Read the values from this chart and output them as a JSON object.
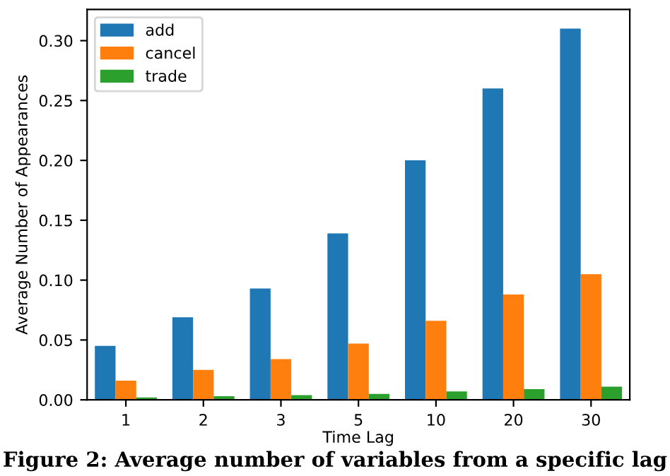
{
  "chart_data": {
    "type": "bar",
    "xlabel": "Time Lag",
    "ylabel": "Average Number of Appearances",
    "categories": [
      "1",
      "2",
      "3",
      "5",
      "10",
      "20",
      "30"
    ],
    "series": [
      {
        "name": "add",
        "color": "#1f77b4",
        "values": [
          0.045,
          0.069,
          0.093,
          0.139,
          0.2,
          0.26,
          0.31
        ]
      },
      {
        "name": "cancel",
        "color": "#ff7f0e",
        "values": [
          0.016,
          0.025,
          0.034,
          0.047,
          0.066,
          0.088,
          0.105
        ]
      },
      {
        "name": "trade",
        "color": "#2ca02c",
        "values": [
          0.002,
          0.003,
          0.004,
          0.005,
          0.007,
          0.009,
          0.011
        ]
      }
    ],
    "ylim": [
      0,
      0.326
    ],
    "yticks": [
      {
        "value": 0,
        "label": "0.00"
      },
      {
        "value": 0.05,
        "label": "0.05"
      },
      {
        "value": 0.1,
        "label": "0.10"
      },
      {
        "value": 0.15,
        "label": "0.15"
      },
      {
        "value": 0.2,
        "label": "0.20"
      },
      {
        "value": 0.25,
        "label": "0.25"
      },
      {
        "value": 0.3,
        "label": "0.30"
      }
    ],
    "legend": "top left",
    "grid": false,
    "annotations": [
      "Figure 2: Average number of variables from a specific lag"
    ]
  }
}
